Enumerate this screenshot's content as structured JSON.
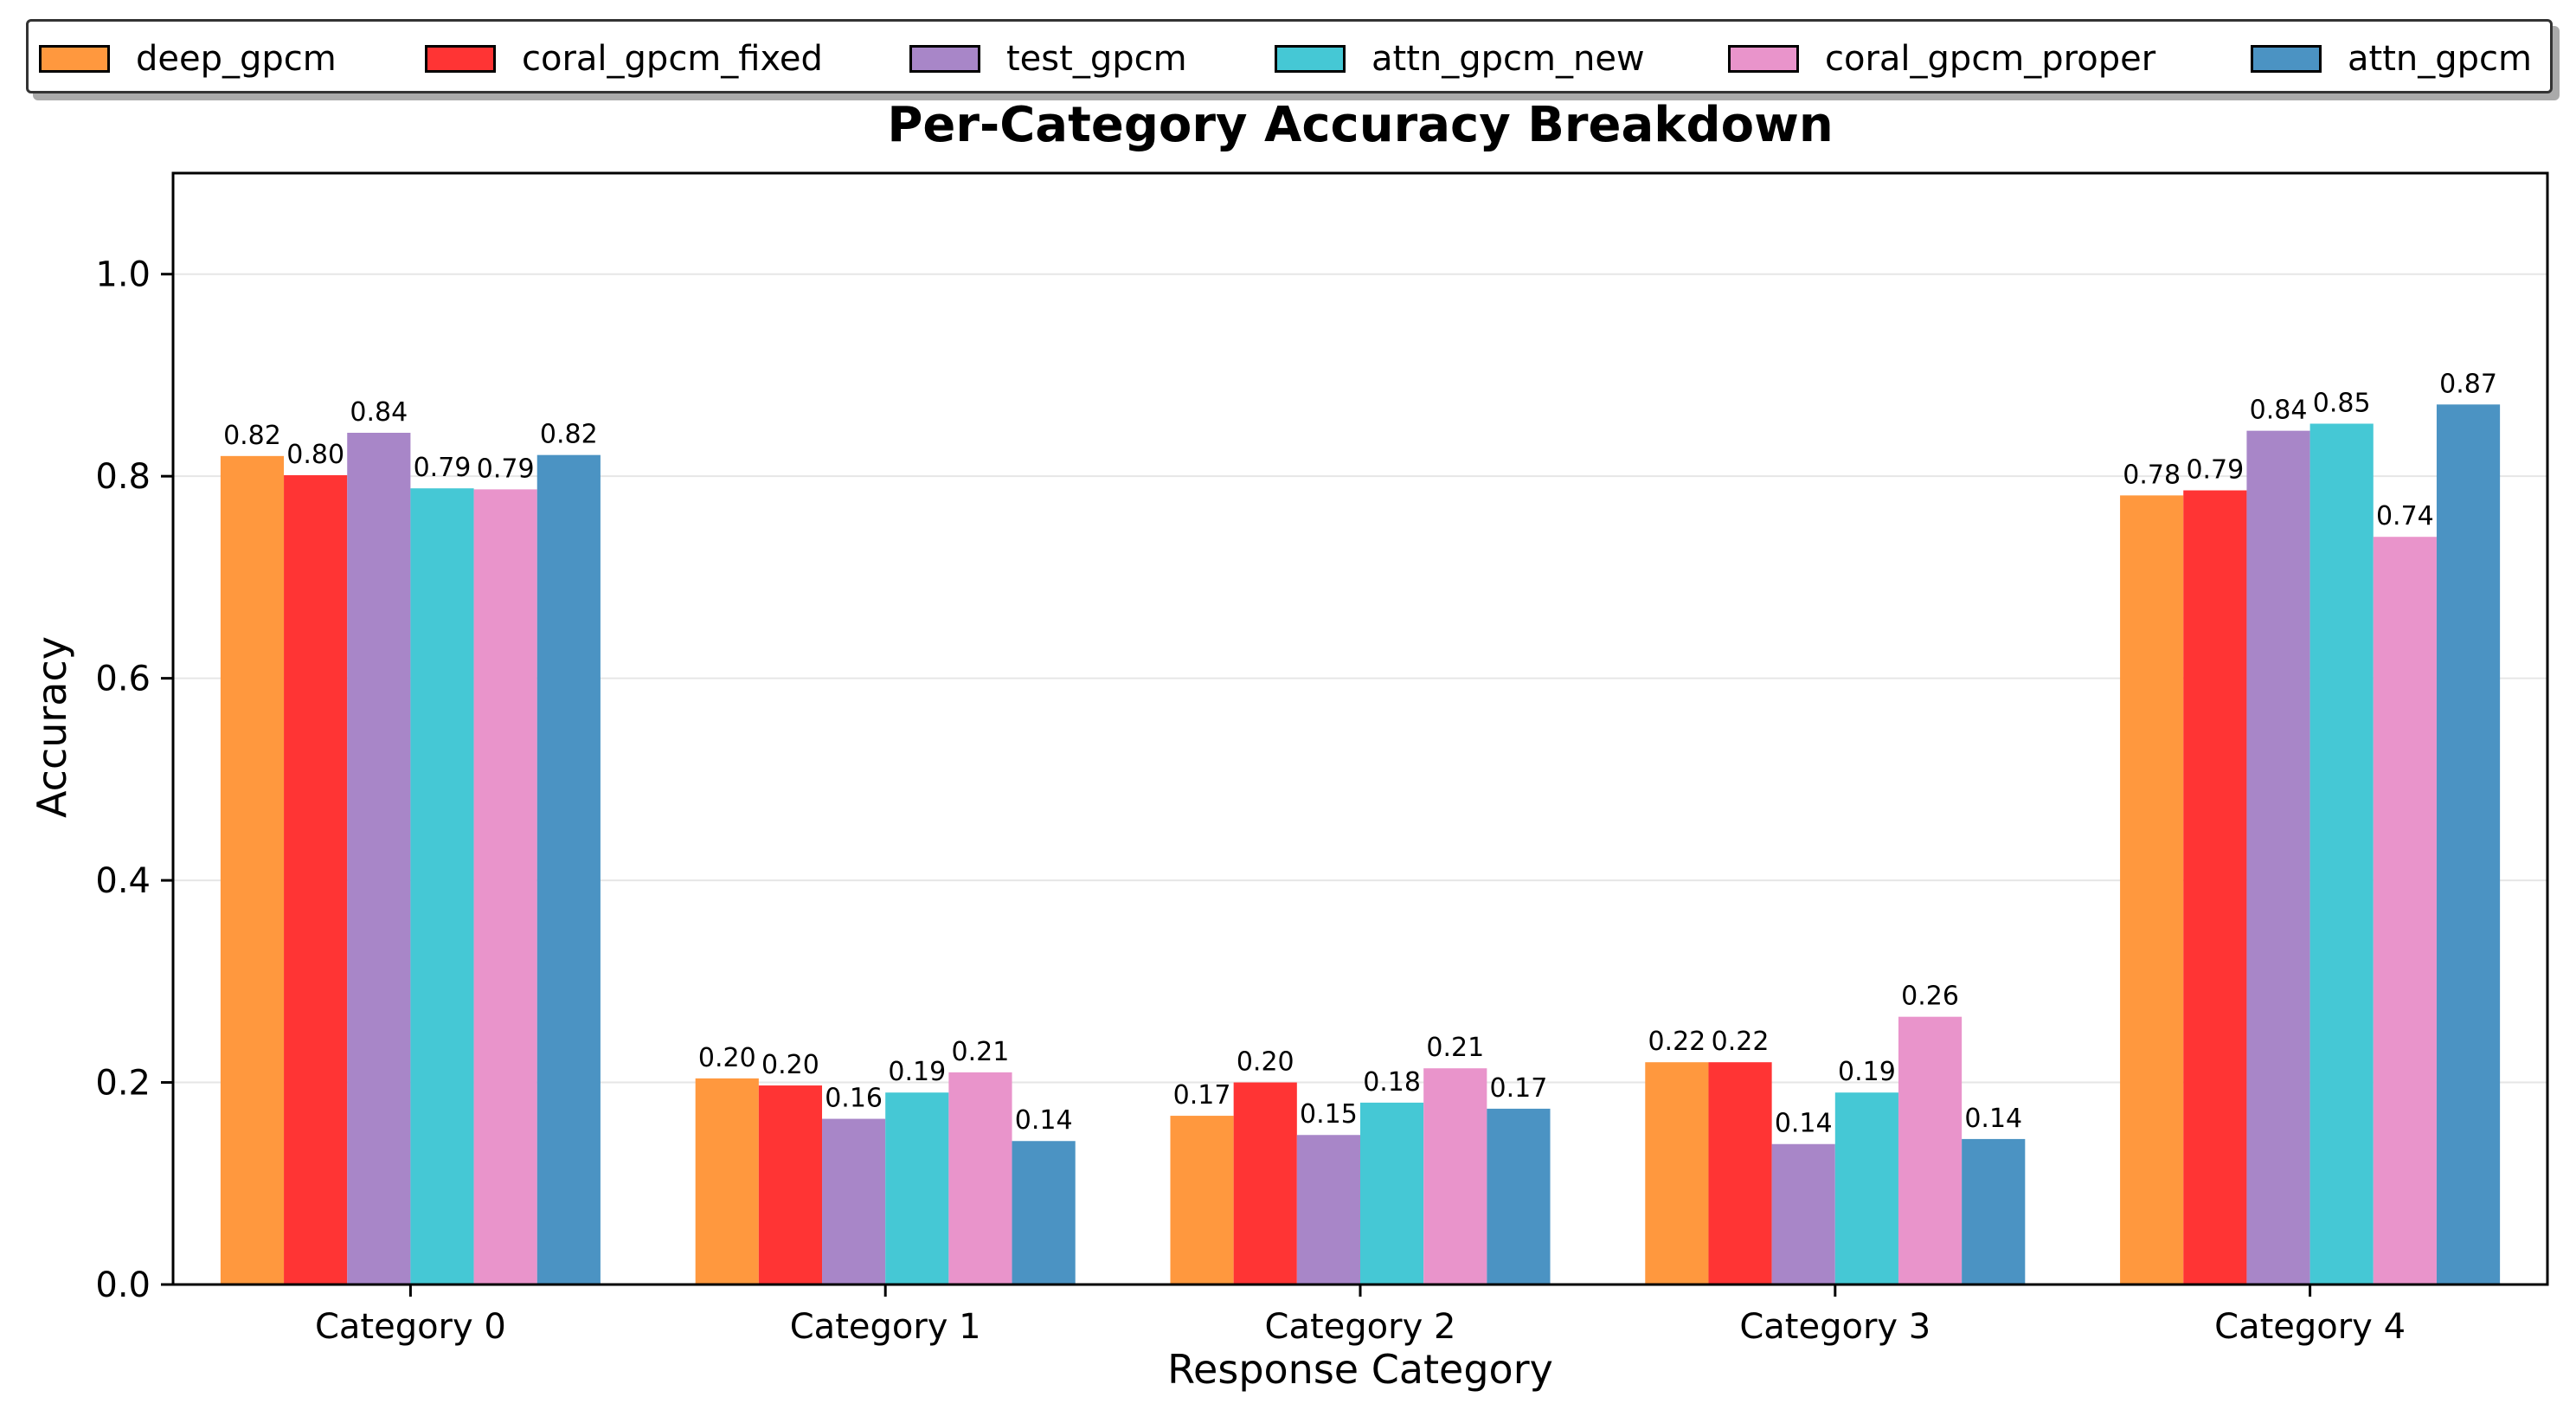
{
  "chart_data": {
    "type": "bar",
    "title": "Per-Category Accuracy Breakdown",
    "xlabel": "Response Category",
    "ylabel": "Accuracy",
    "ylim": [
      0,
      1.1
    ],
    "yticks": [
      0.0,
      0.2,
      0.4,
      0.6,
      0.8,
      1.0
    ],
    "ytick_labels": [
      "0.0",
      "0.2",
      "0.4",
      "0.6",
      "0.8",
      "1.0"
    ],
    "grid": "horizontal",
    "legend_position": "top, outside plot",
    "categories": [
      "Category 0",
      "Category 1",
      "Category 2",
      "Category 3",
      "Category 4"
    ],
    "series": [
      {
        "name": "deep_gpcm",
        "color": "#ff983e",
        "values": [
          0.82,
          0.204,
          0.167,
          0.22,
          0.781
        ],
        "labels": [
          "0.82",
          "0.20",
          "0.17",
          "0.22",
          "0.78"
        ]
      },
      {
        "name": "coral_gpcm_fixed",
        "color": "#ff3434",
        "values": [
          0.801,
          0.197,
          0.2,
          0.22,
          0.786
        ],
        "labels": [
          "0.80",
          "0.20",
          "0.20",
          "0.22",
          "0.79"
        ]
      },
      {
        "name": "test_gpcm",
        "color": "#a886c8",
        "values": [
          0.843,
          0.164,
          0.148,
          0.139,
          0.845
        ],
        "labels": [
          "0.84",
          "0.16",
          "0.15",
          "0.14",
          "0.84"
        ]
      },
      {
        "name": "attn_gpcm_new",
        "color": "#45c8d5",
        "values": [
          0.788,
          0.19,
          0.18,
          0.19,
          0.852
        ],
        "labels": [
          "0.79",
          "0.19",
          "0.18",
          "0.19",
          "0.85"
        ]
      },
      {
        "name": "coral_gpcm_proper",
        "color": "#e994cb",
        "values": [
          0.787,
          0.21,
          0.214,
          0.265,
          0.74
        ],
        "labels": [
          "0.79",
          "0.21",
          "0.21",
          "0.26",
          "0.74"
        ]
      },
      {
        "name": "attn_gpcm",
        "color": "#4b93c3",
        "values": [
          0.821,
          0.142,
          0.174,
          0.144,
          0.871
        ],
        "labels": [
          "0.82",
          "0.14",
          "0.17",
          "0.14",
          "0.87"
        ]
      }
    ]
  }
}
